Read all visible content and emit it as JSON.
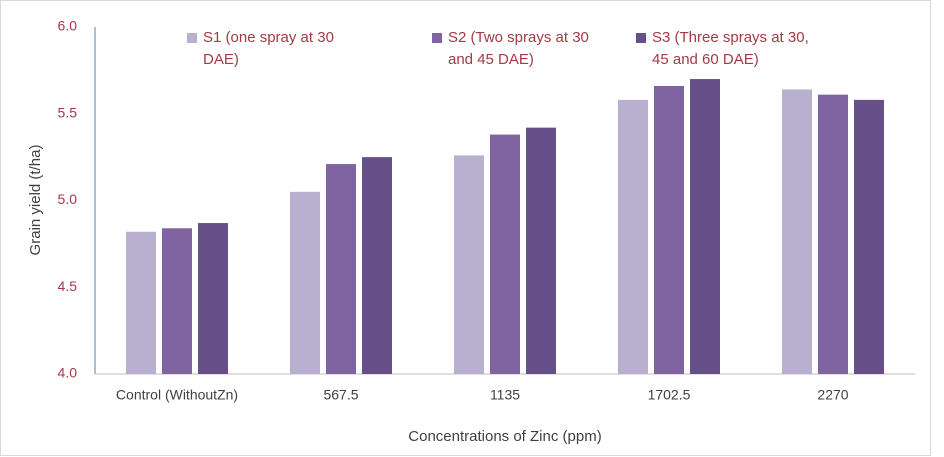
{
  "chart_data": {
    "type": "bar",
    "x_label": "Concentrations of Zinc (ppm)",
    "y_label": "Grain yield (t/ha)",
    "categories": [
      "Control (WithoutZn)",
      "567.5",
      "1135",
      "1702.5",
      "2270"
    ],
    "series": [
      {
        "name": "S1 (one spray at 30 DAE)",
        "color": "#b9b0cf",
        "values": [
          4.82,
          5.05,
          5.26,
          5.58,
          5.64
        ]
      },
      {
        "name": "S2 (Two sprays at 30 and 45 DAE)",
        "color": "#8064a2",
        "values": [
          4.84,
          5.21,
          5.38,
          5.66,
          5.61
        ]
      },
      {
        "name": "S3 (Three sprays at 30, 45 and 60 DAE)",
        "color": "#674f8a",
        "values": [
          4.87,
          5.25,
          5.42,
          5.7,
          5.58
        ]
      }
    ],
    "ylim": [
      4.0,
      6.0
    ],
    "yticks": [
      {
        "value": 4.0,
        "label": "4.0"
      },
      {
        "value": 4.5,
        "label": "4.5"
      },
      {
        "value": 5.0,
        "label": "5.0"
      },
      {
        "value": 5.5,
        "label": "5.5"
      },
      {
        "value": 6.0,
        "label": "6.0"
      }
    ],
    "grid": false,
    "legend": "top"
  }
}
